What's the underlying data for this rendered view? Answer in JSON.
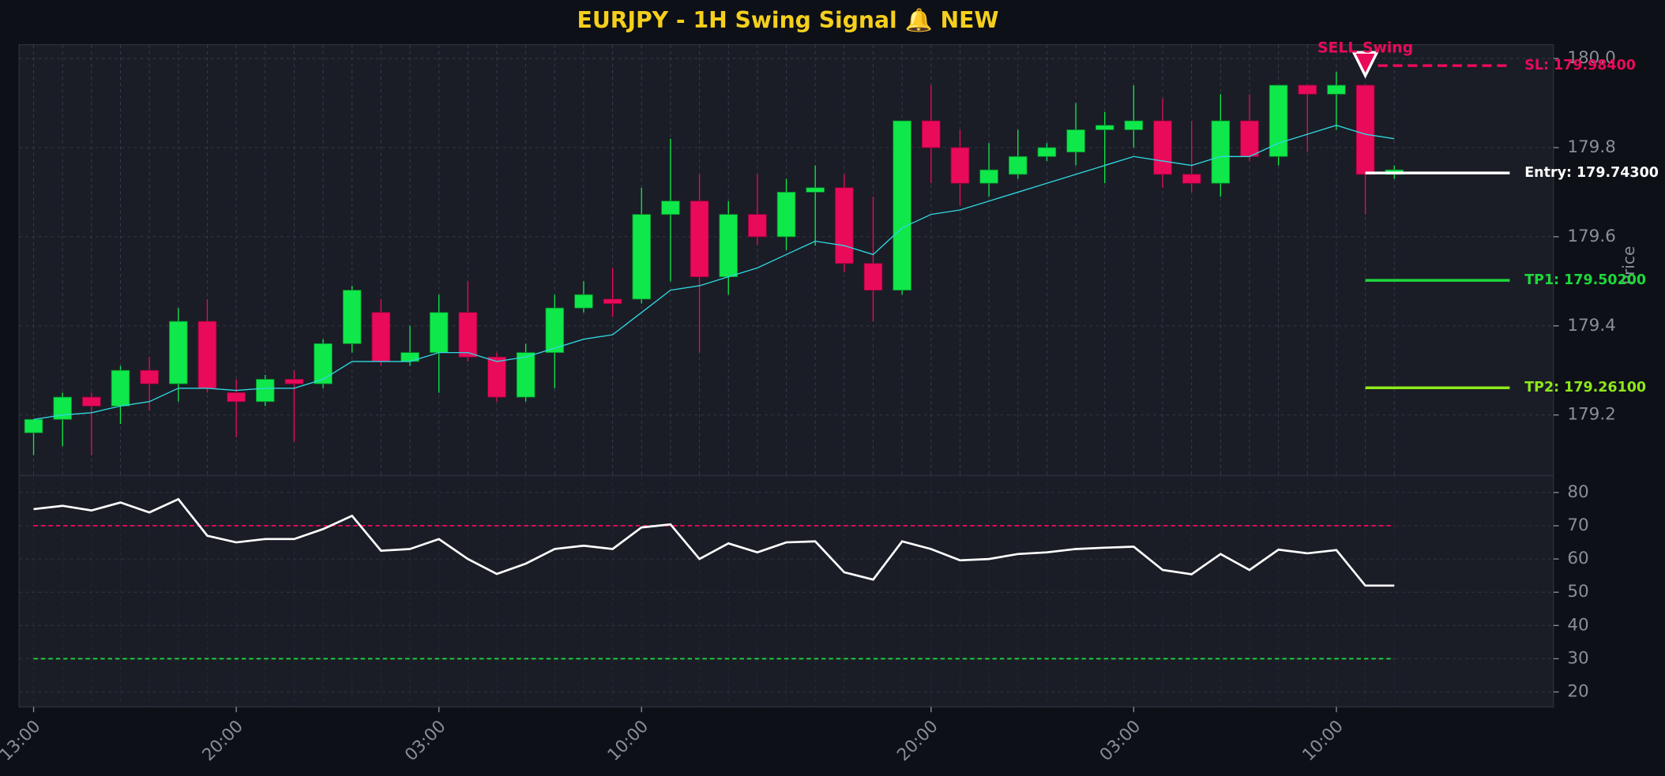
{
  "chart_data": {
    "type": "candlestick",
    "title": "EURJPY - 1H Swing Signal 🔔 NEW",
    "y_label": "Price",
    "categories": [
      "13:00",
      null,
      null,
      null,
      null,
      null,
      null,
      "20:00",
      null,
      null,
      null,
      null,
      null,
      null,
      "03:00",
      null,
      null,
      null,
      null,
      null,
      null,
      "10:00",
      null,
      null,
      null,
      null,
      null,
      null,
      null,
      null,
      null,
      "20:00",
      null,
      null,
      null,
      null,
      null,
      null,
      "03:00",
      null,
      null,
      null,
      null,
      null,
      null,
      "10:00",
      null,
      null
    ],
    "xlim": [
      -0.5,
      52.5
    ],
    "up_color": "#0fe84a",
    "down_color": "#ea0a5a",
    "open": [
      179.16,
      179.19,
      179.24,
      179.22,
      179.3,
      179.27,
      179.41,
      179.25,
      179.23,
      179.28,
      179.27,
      179.36,
      179.43,
      179.32,
      179.34,
      179.43,
      179.33,
      179.24,
      179.34,
      179.44,
      179.46,
      179.46,
      179.65,
      179.68,
      179.51,
      179.65,
      179.6,
      179.7,
      179.71,
      179.54,
      179.48,
      179.86,
      179.8,
      179.72,
      179.74,
      179.78,
      179.79,
      179.84,
      179.84,
      179.86,
      179.74,
      179.72,
      179.86,
      179.78,
      179.94,
      179.92,
      179.94,
      179.74
    ],
    "high": [
      179.19,
      179.25,
      179.25,
      179.31,
      179.33,
      179.44,
      179.46,
      179.28,
      179.29,
      179.3,
      179.37,
      179.49,
      179.46,
      179.4,
      179.47,
      179.5,
      179.34,
      179.36,
      179.47,
      179.5,
      179.53,
      179.71,
      179.82,
      179.74,
      179.68,
      179.74,
      179.73,
      179.76,
      179.74,
      179.69,
      179.86,
      179.94,
      179.84,
      179.81,
      179.84,
      179.81,
      179.9,
      179.88,
      179.94,
      179.91,
      179.86,
      179.92,
      179.92,
      179.94,
      179.94,
      179.97,
      179.94,
      179.76
    ],
    "low": [
      179.11,
      179.13,
      179.11,
      179.18,
      179.21,
      179.23,
      179.25,
      179.15,
      179.22,
      179.14,
      179.26,
      179.34,
      179.31,
      179.31,
      179.25,
      179.32,
      179.23,
      179.23,
      179.26,
      179.43,
      179.42,
      179.45,
      179.5,
      179.34,
      179.47,
      179.58,
      179.57,
      179.58,
      179.52,
      179.41,
      179.47,
      179.72,
      179.67,
      179.69,
      179.73,
      179.77,
      179.76,
      179.72,
      179.8,
      179.71,
      179.7,
      179.69,
      179.77,
      179.76,
      179.79,
      179.84,
      179.65,
      179.73
    ],
    "close": [
      179.19,
      179.24,
      179.22,
      179.3,
      179.27,
      179.41,
      179.26,
      179.23,
      179.28,
      179.27,
      179.36,
      179.48,
      179.32,
      179.34,
      179.43,
      179.33,
      179.24,
      179.34,
      179.44,
      179.47,
      179.45,
      179.65,
      179.68,
      179.51,
      179.65,
      179.6,
      179.7,
      179.71,
      179.54,
      179.48,
      179.86,
      179.8,
      179.72,
      179.75,
      179.78,
      179.8,
      179.84,
      179.85,
      179.86,
      179.74,
      179.72,
      179.86,
      179.78,
      179.94,
      179.92,
      179.94,
      179.74,
      179.75
    ],
    "ma": {
      "color": "#2fd8e0",
      "values": [
        179.19,
        179.2,
        179.205,
        179.22,
        179.23,
        179.26,
        179.26,
        179.255,
        179.26,
        179.26,
        179.28,
        179.32,
        179.32,
        179.32,
        179.34,
        179.34,
        179.32,
        179.33,
        179.35,
        179.37,
        179.38,
        179.43,
        179.48,
        179.49,
        179.51,
        179.53,
        179.56,
        179.59,
        179.58,
        179.56,
        179.62,
        179.65,
        179.66,
        179.68,
        179.7,
        179.72,
        179.74,
        179.76,
        179.78,
        179.77,
        179.76,
        179.78,
        179.78,
        179.81,
        179.83,
        179.85,
        179.83,
        179.82
      ]
    },
    "ylim": [
      179.064,
      180.031
    ],
    "yticks": [
      179.2,
      179.4,
      179.6,
      179.8,
      {
        "value": 180.0,
        "label": "180.0"
      }
    ],
    "grid": true,
    "levels": [
      {
        "label": "SL: 179.98400",
        "value": 179.984,
        "color": "#ea0a5a",
        "style": "dashed"
      },
      {
        "label": "Entry: 179.74300",
        "value": 179.743,
        "color": "#ffffff",
        "style": "solid"
      },
      {
        "label": "TP1: 179.50200",
        "value": 179.502,
        "color": "#1ed83c",
        "style": "solid"
      },
      {
        "label": "TP2: 179.26100",
        "value": 179.261,
        "color": "#8ee81a",
        "style": "solid"
      }
    ],
    "signal": {
      "label": "SELL Swing",
      "index": 46,
      "value": 179.99,
      "color": "#ea0a5a"
    },
    "rsi": {
      "type": "line",
      "color": "#ffffff",
      "values": [
        75,
        76,
        74.6,
        77,
        74,
        78,
        67,
        65,
        66,
        66,
        69,
        73,
        62.5,
        63,
        66,
        60,
        55.5,
        58.6,
        63,
        64,
        63,
        69.5,
        70.4,
        60,
        64.7,
        62,
        65,
        65.3,
        56,
        53.8,
        65.3,
        63,
        59.6,
        60,
        61.5,
        62,
        63,
        63.4,
        63.7,
        56.7,
        55.4,
        61.5,
        56.7,
        62.8,
        61.7,
        62.7,
        52,
        52
      ],
      "ylim": [
        15.5,
        85.1
      ],
      "yticks": [
        20,
        30,
        40,
        50,
        60,
        70,
        80
      ],
      "hlines": [
        {
          "value": 70,
          "color": "#ea0a5a"
        },
        {
          "value": 30,
          "color": "#1ed83c"
        }
      ]
    }
  }
}
